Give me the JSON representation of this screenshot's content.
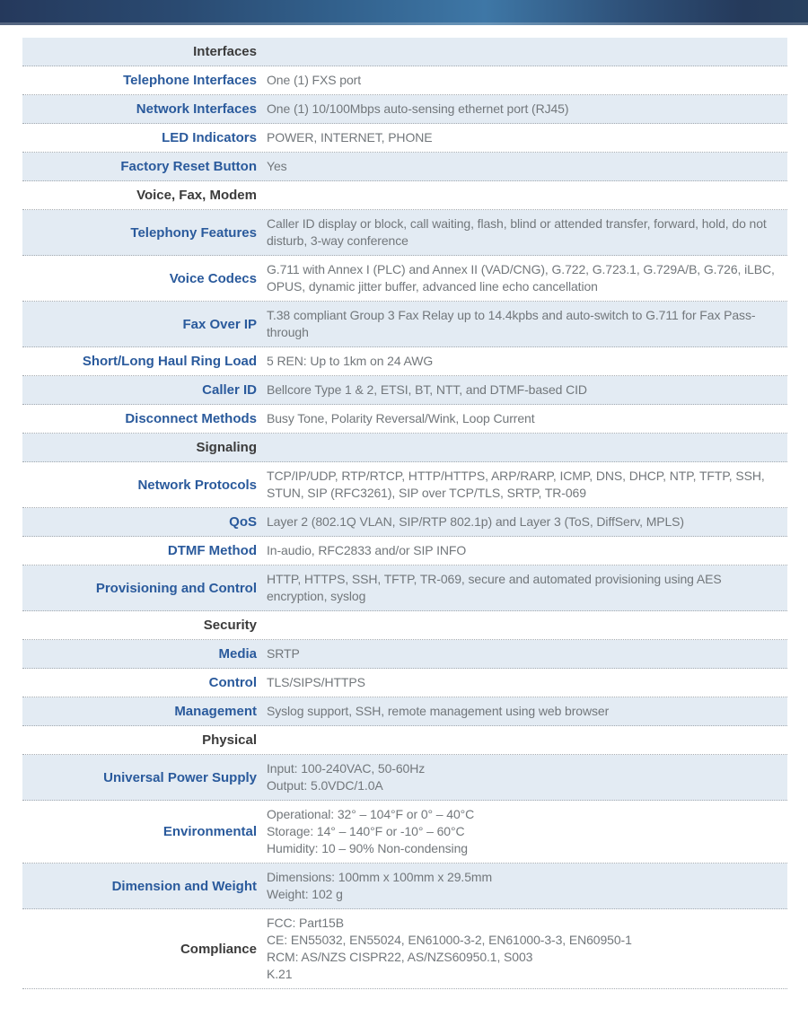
{
  "colors": {
    "header_bar_left": "#25395c",
    "header_bar_mid": "#3e77a6",
    "header_bar_right": "#27405f",
    "row_alt_background": "#e3ebf3",
    "label_blue": "#2a5a9c",
    "section_text": "#3b3b3b",
    "value_text": "#72777b",
    "divider_dotted": "#a5abb1"
  },
  "table": {
    "rows": [
      {
        "type": "section",
        "label": "Interfaces"
      },
      {
        "type": "row",
        "label": "Telephone Interfaces",
        "value": "One (1) FXS port"
      },
      {
        "type": "row",
        "label": "Network Interfaces",
        "value": "One (1) 10/100Mbps auto-sensing ethernet port (RJ45)"
      },
      {
        "type": "row",
        "label": "LED Indicators",
        "value": "POWER, INTERNET, PHONE"
      },
      {
        "type": "row",
        "label": "Factory Reset Button",
        "value": "Yes"
      },
      {
        "type": "section",
        "label": "Voice, Fax, Modem"
      },
      {
        "type": "row",
        "label": "Telephony Features",
        "value": "Caller ID display or block, call waiting, flash, blind or attended transfer, forward, hold, do not disturb, 3-way conference"
      },
      {
        "type": "row",
        "label": "Voice Codecs",
        "value": "G.711 with Annex I (PLC) and Annex II (VAD/CNG), G.722, G.723.1, G.729A/B, G.726, iLBC, OPUS, dynamic jitter buffer, advanced line echo cancellation"
      },
      {
        "type": "row",
        "label": "Fax Over IP",
        "value": "T.38 compliant Group 3 Fax Relay up to 14.4kpbs and auto-switch to G.711 for Fax Pass-through"
      },
      {
        "type": "row",
        "label": "Short/Long Haul Ring Load",
        "value": "5 REN: Up to 1km on 24 AWG"
      },
      {
        "type": "row",
        "label": "Caller ID",
        "value": "Bellcore Type 1 & 2, ETSI, BT, NTT, and DTMF-based CID"
      },
      {
        "type": "row",
        "label": "Disconnect Methods",
        "value": "Busy Tone, Polarity Reversal/Wink, Loop Current"
      },
      {
        "type": "section",
        "label": "Signaling"
      },
      {
        "type": "row",
        "label": "Network Protocols",
        "value": "TCP/IP/UDP, RTP/RTCP, HTTP/HTTPS, ARP/RARP, ICMP, DNS, DHCP, NTP, TFTP, SSH, STUN, SIP (RFC3261), SIP over TCP/TLS, SRTP, TR-069"
      },
      {
        "type": "row",
        "label": "QoS",
        "value": "Layer 2 (802.1Q VLAN, SIP/RTP 802.1p) and Layer 3 (ToS, DiffServ, MPLS)"
      },
      {
        "type": "row",
        "label": "DTMF Method",
        "value": "In-audio, RFC2833 and/or SIP INFO"
      },
      {
        "type": "row",
        "label": "Provisioning and Control",
        "value": "HTTP, HTTPS, SSH, TFTP, TR-069, secure and automated provisioning using AES encryption, syslog"
      },
      {
        "type": "section",
        "label": "Security"
      },
      {
        "type": "row",
        "label": "Media",
        "value": "SRTP"
      },
      {
        "type": "row",
        "label": "Control",
        "value": "TLS/SIPS/HTTPS"
      },
      {
        "type": "row",
        "label": "Management",
        "value": "Syslog support, SSH, remote management using web browser"
      },
      {
        "type": "section",
        "label": "Physical"
      },
      {
        "type": "row",
        "label": "Universal Power Supply",
        "value": [
          "Input: 100-240VAC, 50-60Hz",
          "Output: 5.0VDC/1.0A"
        ]
      },
      {
        "type": "row",
        "label": "Environmental",
        "value": [
          "Operational: 32° – 104°F or 0° – 40°C",
          "Storage: 14° – 140°F or -10° – 60°C",
          "Humidity: 10 – 90% Non-condensing"
        ]
      },
      {
        "type": "row",
        "label": "Dimension and Weight",
        "value": [
          "Dimensions: 100mm x 100mm x 29.5mm",
          "Weight: 102 g"
        ]
      },
      {
        "type": "row",
        "label": "Compliance",
        "dark": true,
        "value": [
          "FCC: Part15B",
          "CE: EN55032, EN55024, EN61000-3-2, EN61000-3-3, EN60950-1",
          "RCM: AS/NZS CISPR22, AS/NZS60950.1, S003",
          "K.21"
        ]
      }
    ]
  }
}
